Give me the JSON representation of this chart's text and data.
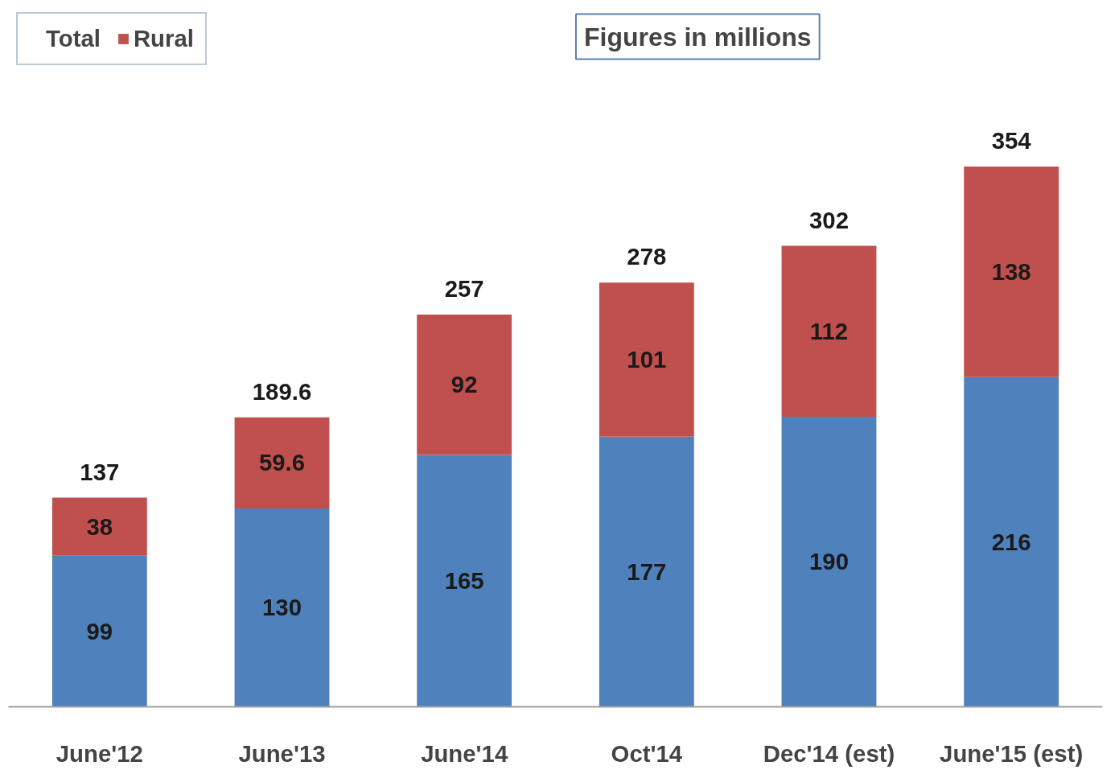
{
  "chart_data": {
    "type": "bar",
    "stacked": true,
    "data_labels": true,
    "legend": "top left",
    "grid": false,
    "tick_labels": "x",
    "categories": [
      "June'12",
      "June'13",
      "June'14",
      "Oct'14",
      "Dec'14 (est)",
      "June'15 (est)"
    ],
    "series": [
      {
        "color": "#4f81bd",
        "values": [
          99,
          130,
          165,
          177,
          190,
          216
        ]
      },
      {
        "name": "Rural",
        "color": "#c0504d",
        "values": [
          38,
          59.6,
          92,
          101,
          112,
          138
        ]
      }
    ],
    "totals": [
      "137",
      "189.6",
      "257",
      "278",
      "302",
      "354"
    ],
    "annotations": [
      "Total",
      "Figures in millions"
    ]
  }
}
